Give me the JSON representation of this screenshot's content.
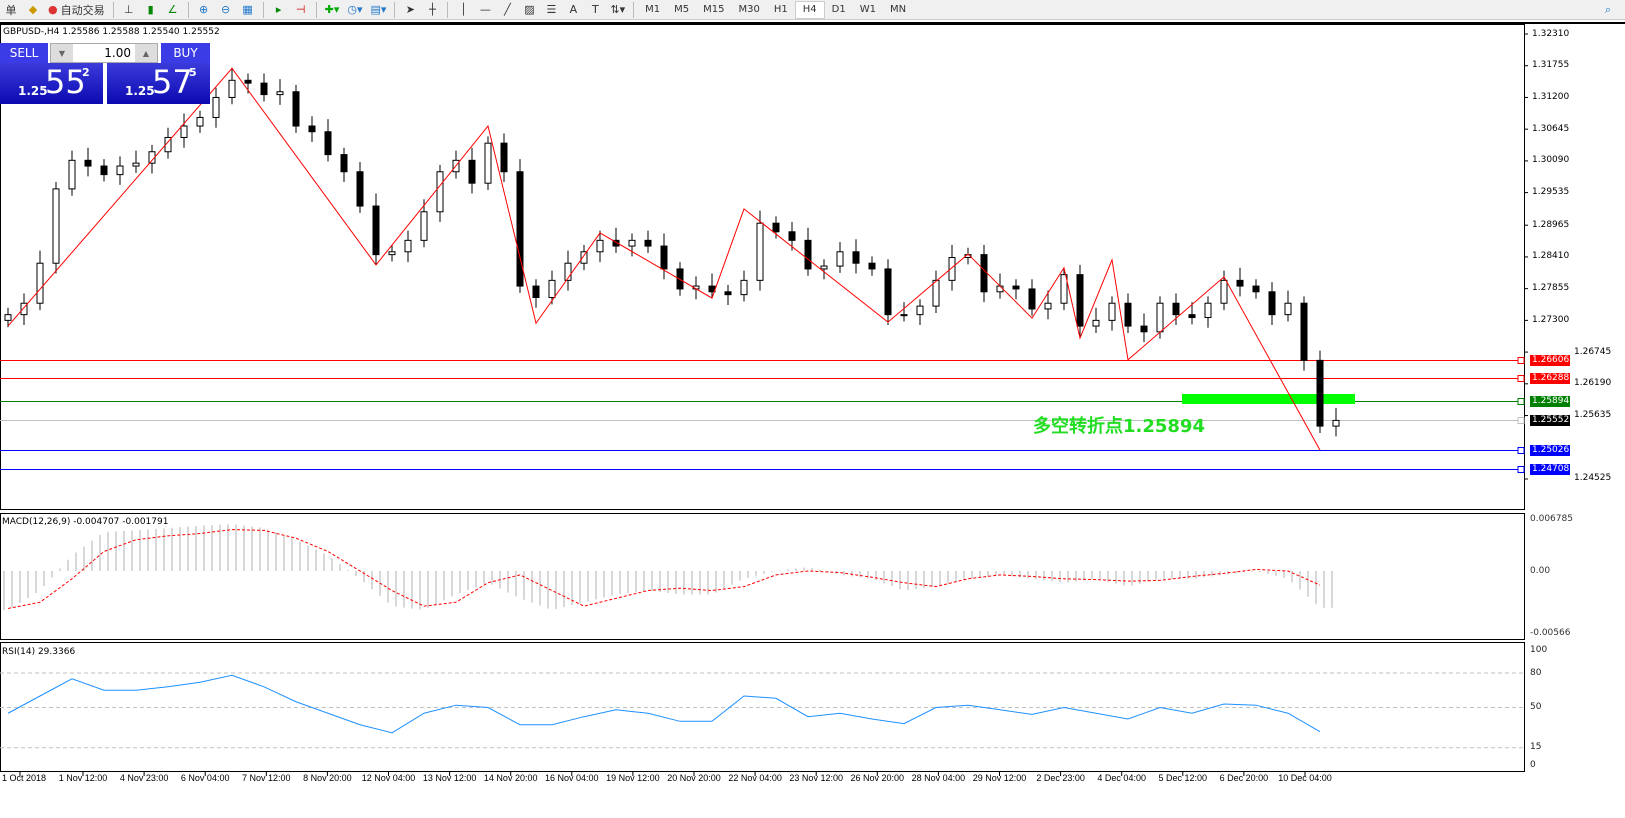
{
  "toolbar": {
    "menu_fragment": "单",
    "auto_trade": "自动交易",
    "timeframes": [
      "M1",
      "M5",
      "M15",
      "M30",
      "H1",
      "H4",
      "D1",
      "W1",
      "MN"
    ],
    "active_timeframe": "H4",
    "icons": [
      "expert-icon",
      "autotrade-icon",
      "bar-chart-icon",
      "candle-chart-icon",
      "line-chart-icon",
      "zoom-in-icon",
      "zoom-out-icon",
      "tile-icon",
      "autoscroll-icon",
      "chart-shift-icon",
      "new-indicator-icon",
      "period-clock-icon",
      "template-icon",
      "cursor-icon",
      "crosshair-icon",
      "vertical-line-icon",
      "horizontal-line-icon",
      "trendline-icon",
      "equidistant-channel-icon",
      "fibonacci-icon",
      "text-icon",
      "text-label-icon",
      "arrows-icon",
      "search-icon"
    ]
  },
  "chart": {
    "symbol_info": "GBPUSD-,H4  1.25586 1.25588 1.25540 1.25552",
    "trade_panel": {
      "sell_label": "SELL",
      "buy_label": "BUY",
      "lot": "1.00",
      "sell_prefix": "1.25",
      "sell_big": "55",
      "sell_sup": "2",
      "buy_prefix": "1.25",
      "buy_big": "57",
      "buy_sup": "5"
    },
    "price_axis": [
      "1.32310",
      "1.31755",
      "1.31200",
      "1.30645",
      "1.30090",
      "1.29535",
      "1.28965",
      "1.28410",
      "1.27855",
      "1.27300",
      "1.26745",
      "1.26190",
      "1.25635",
      "1.24525"
    ],
    "levels": [
      {
        "price": "1.26606",
        "color": "#ff0000"
      },
      {
        "price": "1.26288",
        "color": "#ff0000"
      },
      {
        "price": "1.25894",
        "color": "#008000"
      },
      {
        "price": "1.25552",
        "color": "#000000",
        "line": "#c0c0c0"
      },
      {
        "price": "1.25026",
        "color": "#0000ff"
      },
      {
        "price": "1.24708",
        "color": "#0000ff"
      }
    ],
    "pivot_text": "多空转折点1.25894",
    "pivot_color": "#00ff00",
    "closes": [
      1.274,
      1.276,
      1.283,
      1.296,
      1.301,
      1.3,
      1.2985,
      1.3,
      1.3005,
      1.3025,
      1.305,
      1.307,
      1.3085,
      1.312,
      1.315,
      1.3145,
      1.3125,
      1.313,
      1.307,
      1.306,
      1.302,
      1.299,
      1.293,
      1.2845,
      1.285,
      1.287,
      1.292,
      1.299,
      1.301,
      1.297,
      1.304,
      1.299,
      1.279,
      1.277,
      1.28,
      1.283,
      1.285,
      1.287,
      1.286,
      1.287,
      1.286,
      1.282,
      1.2785,
      1.279,
      1.278,
      1.2775,
      1.28,
      1.29,
      1.2885,
      1.287,
      1.282,
      1.2825,
      1.285,
      1.283,
      1.282,
      1.274,
      1.274,
      1.2755,
      1.28,
      1.284,
      1.2845,
      1.278,
      1.279,
      1.2785,
      1.275,
      1.276,
      1.281,
      1.272,
      1.273,
      1.276,
      1.272,
      1.271,
      1.276,
      1.274,
      1.2735,
      1.276,
      1.28,
      1.279,
      1.278,
      1.274,
      1.276,
      1.266,
      1.2545,
      1.2555
    ],
    "zigzag": [
      [
        0,
        1.272
      ],
      [
        14,
        1.3171
      ],
      [
        23,
        1.2827
      ],
      [
        30,
        1.307
      ],
      [
        33,
        1.2725
      ],
      [
        37,
        1.2883
      ],
      [
        44,
        1.2769
      ],
      [
        46,
        1.2925
      ],
      [
        55,
        1.2727
      ],
      [
        60,
        1.2846
      ],
      [
        64,
        1.2734
      ],
      [
        66,
        1.2822
      ],
      [
        67,
        1.2699
      ],
      [
        69,
        1.2836
      ],
      [
        70,
        1.2661
      ],
      [
        76,
        1.2806
      ],
      [
        82,
        1.2503
      ]
    ]
  },
  "macd": {
    "label": "MACD(12,26,9) -0.004707 -0.001791",
    "axis": [
      "0.006785",
      "0.00",
      "-0.00566"
    ],
    "main": [
      -5.0,
      -2.5,
      2.0,
      5.0,
      5.2,
      5.5,
      5.8,
      6.0,
      5.5,
      4.0,
      2.0,
      -1.0,
      -4.5,
      -5.0,
      -3.0,
      -1.5,
      -3.5,
      -5.0,
      -4.0,
      -3.0,
      -2.5,
      -3.0,
      -3.0,
      -1.0,
      0.0,
      0.5,
      -0.5,
      -1.0,
      -2.5,
      -2.0,
      -1.0,
      -0.5,
      -1.0,
      -1.5,
      -1.0,
      -2.0,
      -1.0,
      -1.0,
      -0.5,
      0.0,
      -1.0,
      -4.7
    ],
    "signal": [
      -4.8,
      -4.0,
      -1.0,
      2.5,
      4.0,
      4.5,
      4.8,
      5.3,
      5.2,
      4.2,
      2.5,
      0,
      -2.5,
      -4.5,
      -4.0,
      -1.5,
      -0.5,
      -2.5,
      -4.5,
      -3.5,
      -2.5,
      -2.2,
      -2.5,
      -2.0,
      -0.5,
      0.0,
      -0.2,
      -0.8,
      -1.5,
      -2.0,
      -1.0,
      -0.5,
      -0.7,
      -1.0,
      -1.1,
      -1.3,
      -1.2,
      -0.7,
      -0.3,
      0.2,
      0.0,
      -1.8
    ],
    "unit": 0.001
  },
  "rsi": {
    "label": "RSI(14) 29.3366",
    "axis": [
      "100",
      "80",
      "50",
      "15",
      "0"
    ],
    "values": [
      45,
      60,
      75,
      65,
      65,
      68,
      72,
      78,
      68,
      55,
      45,
      35,
      28,
      45,
      52,
      50,
      35,
      35,
      42,
      48,
      45,
      38,
      38,
      60,
      58,
      42,
      45,
      40,
      36,
      50,
      52,
      48,
      44,
      50,
      45,
      40,
      50,
      45,
      53,
      52,
      45,
      29
    ]
  },
  "time_axis": [
    "1 Oct 2018",
    "1 Nov 12:00",
    "4 Nov 23:00",
    "6 Nov 04:00",
    "7 Nov 12:00",
    "8 Nov 20:00",
    "12 Nov 04:00",
    "13 Nov 12:00",
    "14 Nov 20:00",
    "16 Nov 04:00",
    "19 Nov 12:00",
    "20 Nov 20:00",
    "22 Nov 04:00",
    "23 Nov 12:00",
    "26 Nov 20:00",
    "28 Nov 04:00",
    "29 Nov 12:00",
    "2 Dec 23:00",
    "4 Dec 04:00",
    "5 Dec 12:00",
    "6 Dec 20:00",
    "10 Dec 04:00"
  ]
}
